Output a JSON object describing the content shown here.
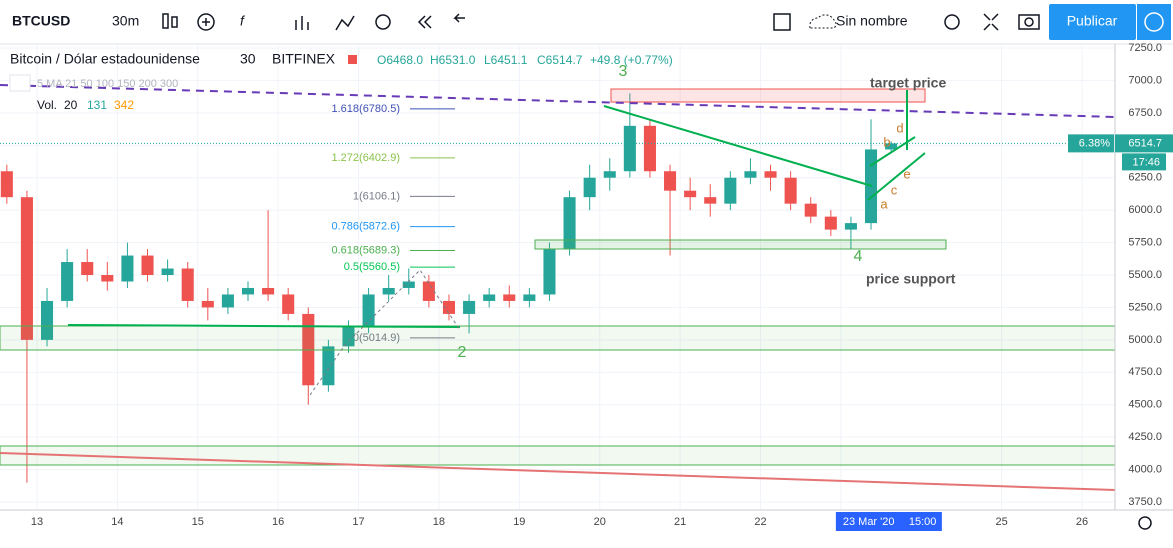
{
  "toolbar": {
    "symbol": "BTCUSD",
    "interval": "30m",
    "layout_name": "Sin nombre",
    "publish": "Publicar"
  },
  "legend": {
    "title": "Bitcoin / Dólar estadounidense",
    "interval": "30",
    "exchange": "BITFINEX",
    "ohlc": [
      "O6468.0",
      "H6531.0",
      "L6451.1",
      "C6514.7",
      "+49.8 (+0.77%)"
    ],
    "indicators": "5 MA 21 50 100 150 200 300",
    "volume": [
      "Vol.",
      "20",
      "131",
      "342"
    ]
  },
  "annotations": {
    "wave_3": "3",
    "wave_2": "2",
    "wave_4": "4",
    "target": "target price",
    "support": "price support",
    "a": "a",
    "b": "b",
    "c": "c",
    "d": "d",
    "e": "e"
  },
  "chart_data": {
    "type": "candlestick",
    "x": [
      12.625,
      12.875,
      13.125,
      13.375,
      13.625,
      13.875,
      14.125,
      14.375,
      14.625,
      14.875,
      15.125,
      15.375,
      15.625,
      15.875,
      16.125,
      16.375,
      16.625,
      16.875,
      17.125,
      17.375,
      17.625,
      17.875,
      18.125,
      18.375,
      18.625,
      18.875,
      19.125,
      19.375,
      19.625,
      19.875,
      20.125,
      20.375,
      20.625,
      20.875,
      21.125,
      21.375,
      21.625,
      21.875,
      22.125,
      22.375,
      22.625,
      22.875,
      23.125,
      23.375,
      23.625
    ],
    "open": [
      6300,
      6100,
      5000,
      5300,
      5600,
      5500,
      5450,
      5650,
      5500,
      5550,
      5300,
      5250,
      5350,
      5400,
      5350,
      5200,
      4650,
      4950,
      5100,
      5350,
      5400,
      5450,
      5300,
      5200,
      5300,
      5350,
      5300,
      5350,
      5700,
      6100,
      6250,
      6300,
      6650,
      6300,
      6150,
      6100,
      6050,
      6250,
      6300,
      6250,
      6050,
      5950,
      5850,
      5900,
      6468
    ],
    "high": [
      6350,
      6150,
      5400,
      5700,
      5700,
      5600,
      5750,
      5700,
      5620,
      5600,
      5400,
      5400,
      5450,
      6000,
      5400,
      5250,
      5000,
      5150,
      5400,
      5500,
      5550,
      5500,
      5350,
      5350,
      5400,
      5420,
      5400,
      5750,
      6150,
      6350,
      6400,
      6900,
      6700,
      6350,
      6250,
      6200,
      6300,
      6400,
      6350,
      6300,
      6100,
      6000,
      5950,
      6700,
      6531
    ],
    "low": [
      6050,
      3900,
      4950,
      5250,
      5450,
      5380,
      5400,
      5450,
      5450,
      5250,
      5150,
      5200,
      5300,
      5300,
      5150,
      4500,
      4600,
      4900,
      5050,
      5300,
      5350,
      5250,
      5150,
      5050,
      5250,
      5250,
      5250,
      5300,
      5650,
      6000,
      6150,
      6250,
      6250,
      5650,
      6000,
      5950,
      6000,
      6200,
      6150,
      6000,
      5900,
      5800,
      5700,
      5850,
      6451.1
    ],
    "close": [
      6100,
      5000,
      5300,
      5600,
      5500,
      5450,
      5650,
      5500,
      5550,
      5300,
      5250,
      5350,
      5400,
      5350,
      5200,
      4650,
      4950,
      5100,
      5350,
      5400,
      5450,
      5300,
      5200,
      5300,
      5350,
      5300,
      5350,
      5700,
      6100,
      6250,
      6300,
      6650,
      6300,
      6150,
      6100,
      6050,
      6250,
      6300,
      6250,
      6050,
      5950,
      5850,
      5900,
      6468,
      6514.7
    ],
    "colors": {
      "up": "#26a69a",
      "down": "#ef5350"
    },
    "xlim": [
      12.54,
      26.41
    ],
    "xticks": [
      13,
      14,
      15,
      16,
      17,
      18,
      19,
      20,
      21,
      22,
      {
        "value": 23,
        "label": "23 Mar '20"
      },
      25,
      26
    ],
    "crosshair_time": "15:00",
    "ylim": [
      3688.5,
      7280.8
    ],
    "yticks": [
      {
        "value": 3750,
        "label": "3750.0"
      },
      {
        "value": 4000,
        "label": "4000.0"
      },
      {
        "value": 4250,
        "label": "4250.0"
      },
      {
        "value": 4500,
        "label": "4500.0"
      },
      {
        "value": 4750,
        "label": "4750.0"
      },
      {
        "value": 5000,
        "label": "5000.0"
      },
      {
        "value": 5250,
        "label": "5250.0"
      },
      {
        "value": 5500,
        "label": "5500.0"
      },
      {
        "value": 5750,
        "label": "5750.0"
      },
      {
        "value": 6000,
        "label": "6000.0"
      },
      {
        "value": 6250,
        "label": "6250.0"
      },
      {
        "value": 6500,
        "label": "6500.0"
      },
      {
        "value": 6750,
        "label": "6750.0"
      },
      {
        "value": 7000,
        "label": "7000.0"
      },
      {
        "value": 7250,
        "label": "7250.0"
      }
    ],
    "last_price": 6514.7,
    "change_tag": "6.38%",
    "countdown": "17:46",
    "fib_levels": [
      {
        "label": "1.618(6780.5)",
        "value": 6780.5,
        "color": "#3f51b5"
      },
      {
        "label": "1.272(6402.9)",
        "value": 6402.9,
        "color": "#8bc34a"
      },
      {
        "label": "1(6106.1)",
        "value": 6106.1,
        "color": "#787b86"
      },
      {
        "label": "0.786(5872.6)",
        "value": 5872.6,
        "color": "#2196f3"
      },
      {
        "label": "0.618(5689.3)",
        "value": 5689.3,
        "color": "#4caf50"
      },
      {
        "label": "0.5(5560.5)",
        "value": 5560.5,
        "color": "#00c853"
      },
      {
        "label": "0(5014.9)",
        "value": 5014.9,
        "color": "#787b86"
      }
    ],
    "grid": true
  }
}
